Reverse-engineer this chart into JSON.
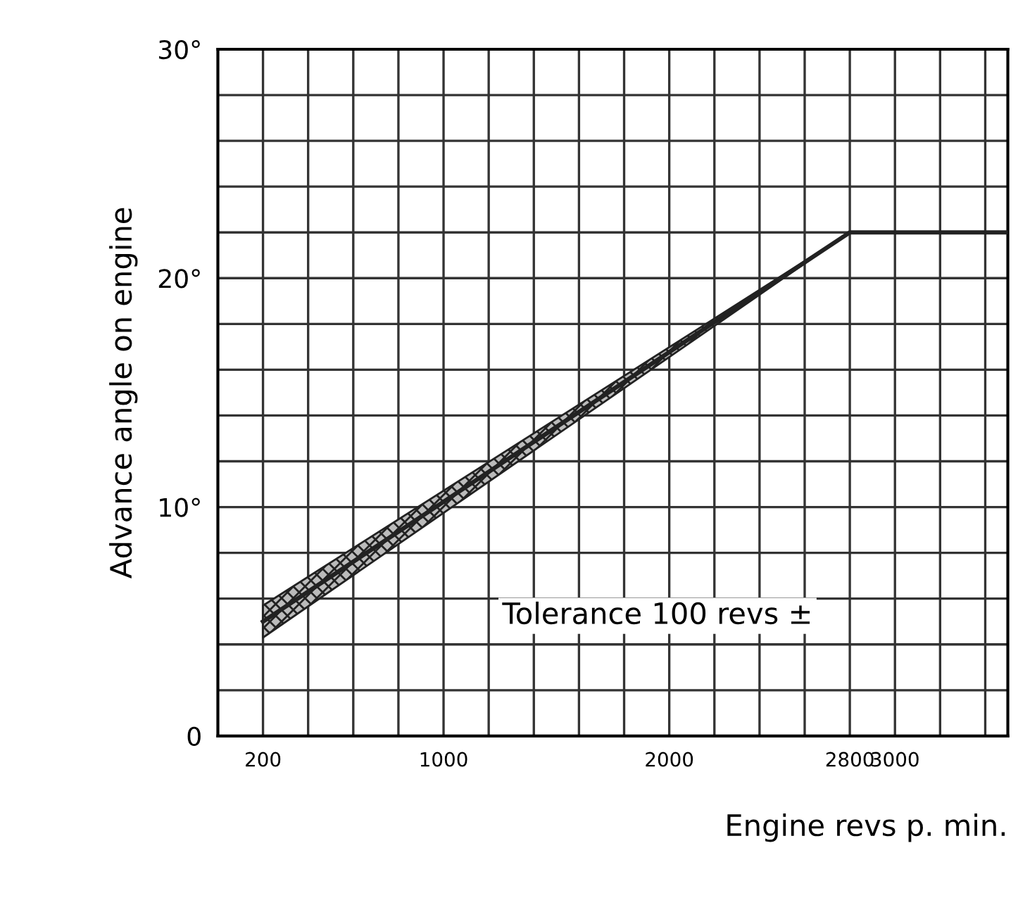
{
  "chart_data": {
    "type": "line",
    "xlabel": "Engine revs p. min.",
    "ylabel": "Advance angle on engine",
    "series": [
      {
        "x": [
          200,
          2800,
          3500
        ],
        "values": [
          5,
          22,
          22
        ],
        "lower": [
          4.3,
          22,
          null
        ],
        "upper": [
          5.7,
          22,
          null
        ],
        "color": "#222222"
      }
    ],
    "xlim": [
      0,
      3500
    ],
    "xticks": [
      {
        "value": 0,
        "label": null
      },
      200,
      {
        "value": 400,
        "label": null
      },
      {
        "value": 600,
        "label": null
      },
      {
        "value": 800,
        "label": null
      },
      1000,
      {
        "value": 1200,
        "label": null
      },
      {
        "value": 1400,
        "label": null
      },
      {
        "value": 1600,
        "label": null
      },
      {
        "value": 1800,
        "label": null
      },
      2000,
      {
        "value": 2200,
        "label": null
      },
      {
        "value": 2400,
        "label": null
      },
      {
        "value": 2600,
        "label": null
      },
      2800,
      3000,
      {
        "value": 3200,
        "label": null
      },
      {
        "value": 3400,
        "label": null
      }
    ],
    "ylim": [
      0,
      30
    ],
    "yticks": [
      0,
      {
        "value": 2,
        "label": null
      },
      {
        "value": 4,
        "label": null
      },
      {
        "value": 6,
        "label": null
      },
      {
        "value": 8,
        "label": null
      },
      {
        "value": 10,
        "label": "10°"
      },
      {
        "value": 12,
        "label": null
      },
      {
        "value": 14,
        "label": null
      },
      {
        "value": 16,
        "label": null
      },
      {
        "value": 18,
        "label": null
      },
      {
        "value": 20,
        "label": "20°"
      },
      {
        "value": 22,
        "label": null
      },
      {
        "value": 24,
        "label": null
      },
      {
        "value": 26,
        "label": null
      },
      {
        "value": 28,
        "label": null
      },
      {
        "value": 30,
        "label": "30°"
      }
    ],
    "grid": true,
    "annotations": [
      "Tolerance 100 revs ±"
    ]
  }
}
